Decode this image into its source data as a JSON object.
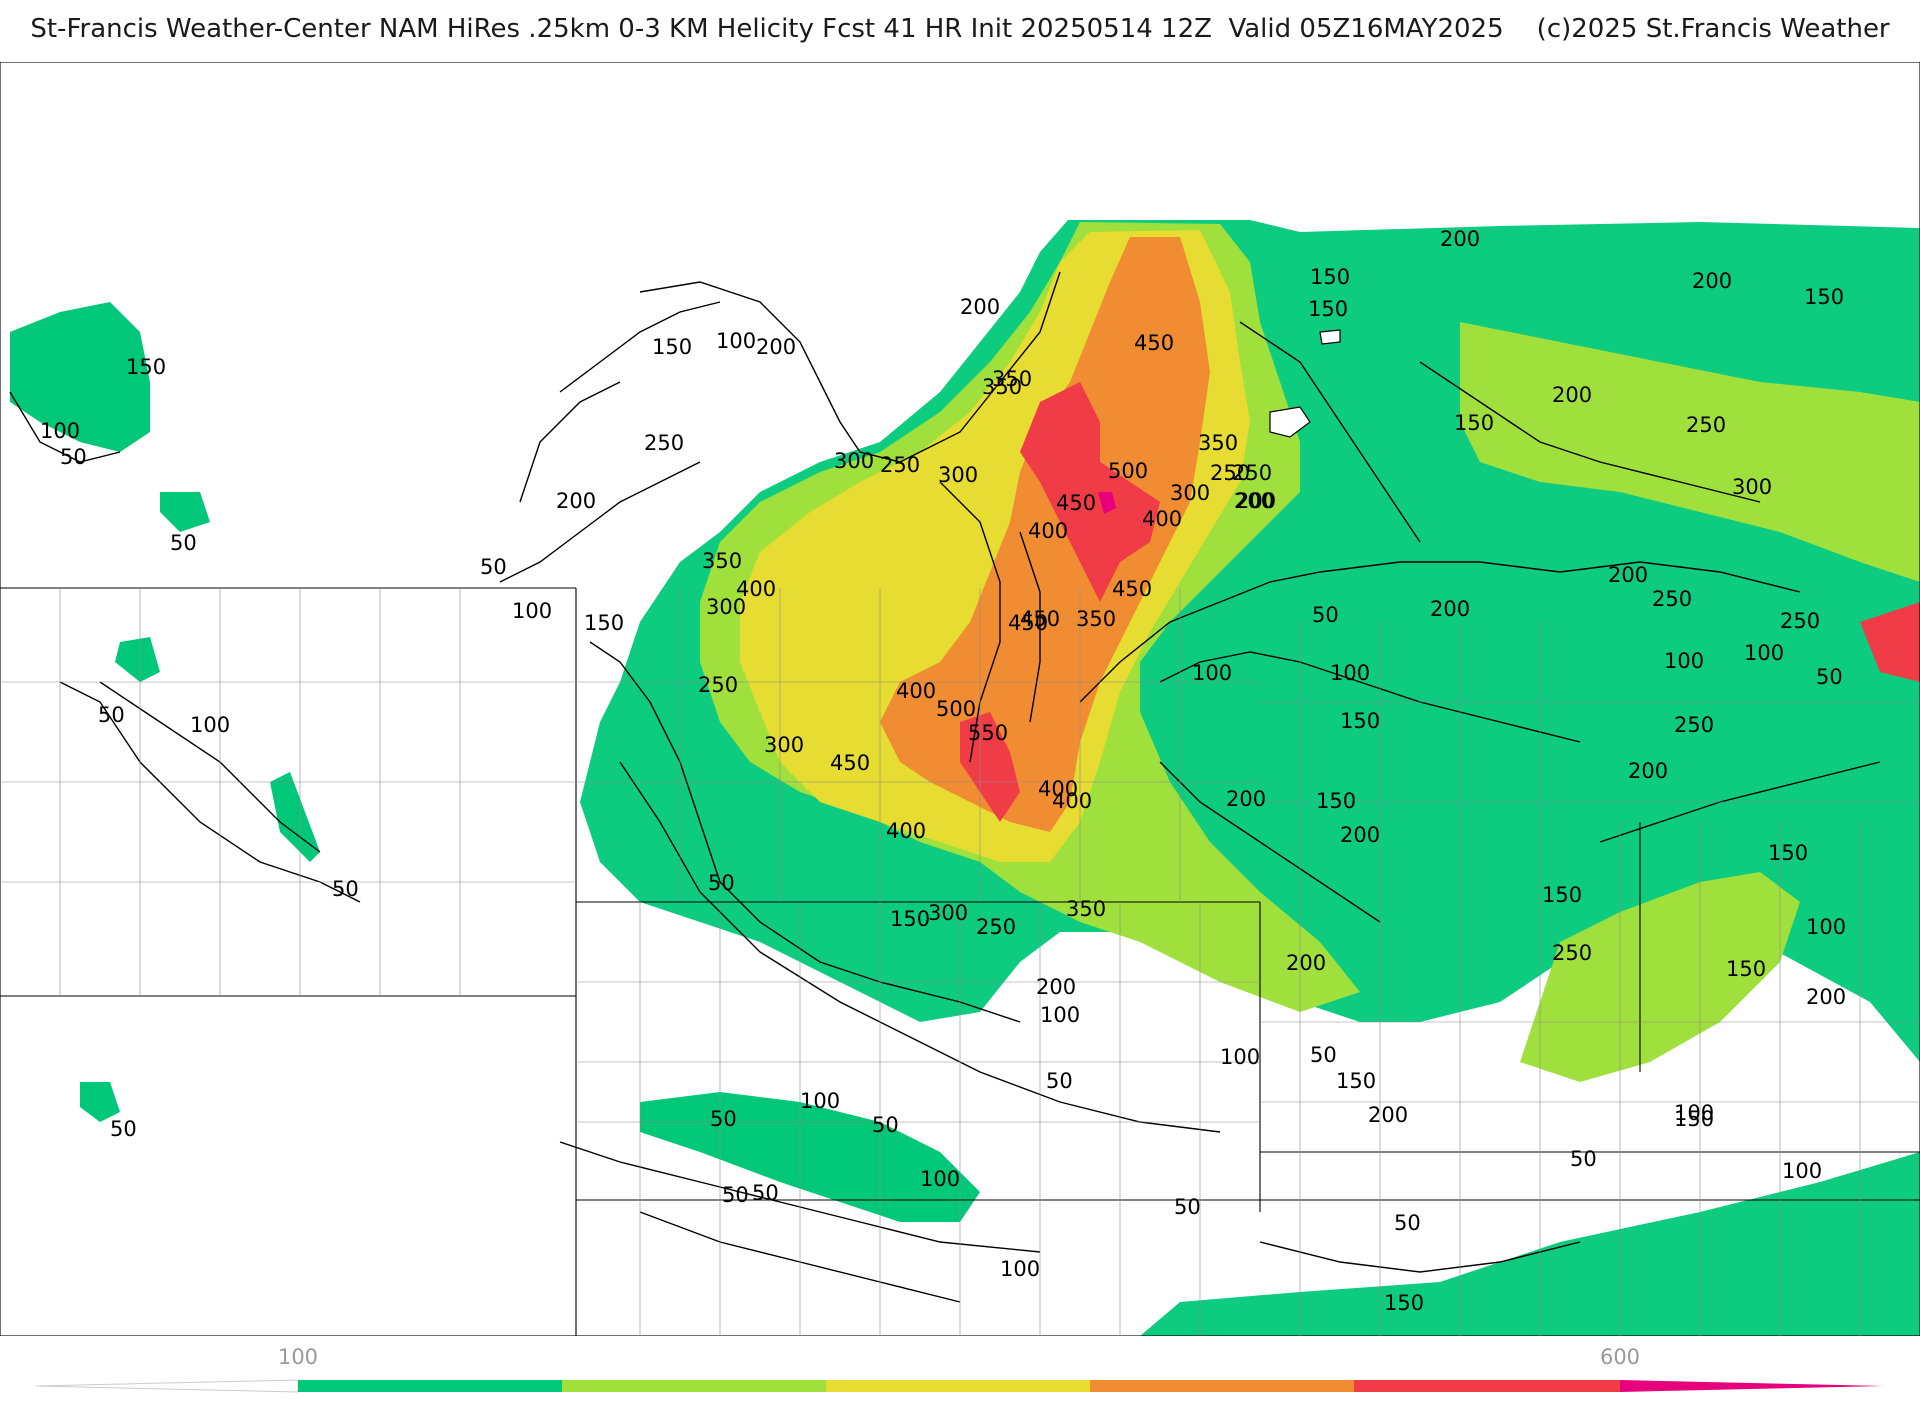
{
  "title": "St-Francis Weather-Center NAM HiRes .25km 0-3 KM Helicity Fcst 41 HR Init 20250514 12Z  Valid 05Z16MAY2025    (c)2025 St.Francis Weather",
  "colors": {
    "band_100_150": "#00c878",
    "band_150_200": "#28d28c",
    "band_200_300": "#a0e03c",
    "band_300_400": "#e6dc32",
    "band_400_500": "#f08c32",
    "band_500_600": "#f03c46",
    "band_600_plus": "#e6007c",
    "contour": "#000000",
    "border": "#8c8c8c"
  },
  "colorbar": {
    "tick_labels": [
      "100",
      "600"
    ],
    "segments": [
      "#00c878",
      "#a0e03c",
      "#e6dc32",
      "#f08c32",
      "#f03c46",
      "#e6007c"
    ]
  },
  "contour_labels": [
    "150",
    "100",
    "50",
    "50",
    "50",
    "100",
    "150",
    "50",
    "50",
    "50",
    "50",
    "150",
    "100",
    "200",
    "250",
    "200",
    "50",
    "100",
    "150",
    "250",
    "200",
    "50",
    "300",
    "250",
    "300",
    "350",
    "350",
    "400",
    "300",
    "400",
    "450",
    "400",
    "500",
    "550",
    "450",
    "400",
    "400",
    "300",
    "250",
    "150",
    "300",
    "350",
    "250",
    "200",
    "100",
    "50",
    "100",
    "50",
    "50",
    "50",
    "100",
    "100",
    "200",
    "450",
    "450",
    "500",
    "450",
    "400",
    "350",
    "300",
    "250",
    "200",
    "350",
    "450",
    "400",
    "350",
    "200",
    "150",
    "200",
    "150",
    "200",
    "250",
    "300",
    "200",
    "250",
    "250",
    "150",
    "200",
    "100",
    "100",
    "50",
    "100",
    "50",
    "100",
    "150",
    "250",
    "200",
    "150",
    "200",
    "200",
    "150",
    "150",
    "200",
    "250",
    "200",
    "150",
    "100",
    "50",
    "100",
    "150",
    "200",
    "150",
    "50",
    "100",
    "100",
    "50",
    "150",
    "200"
  ]
}
